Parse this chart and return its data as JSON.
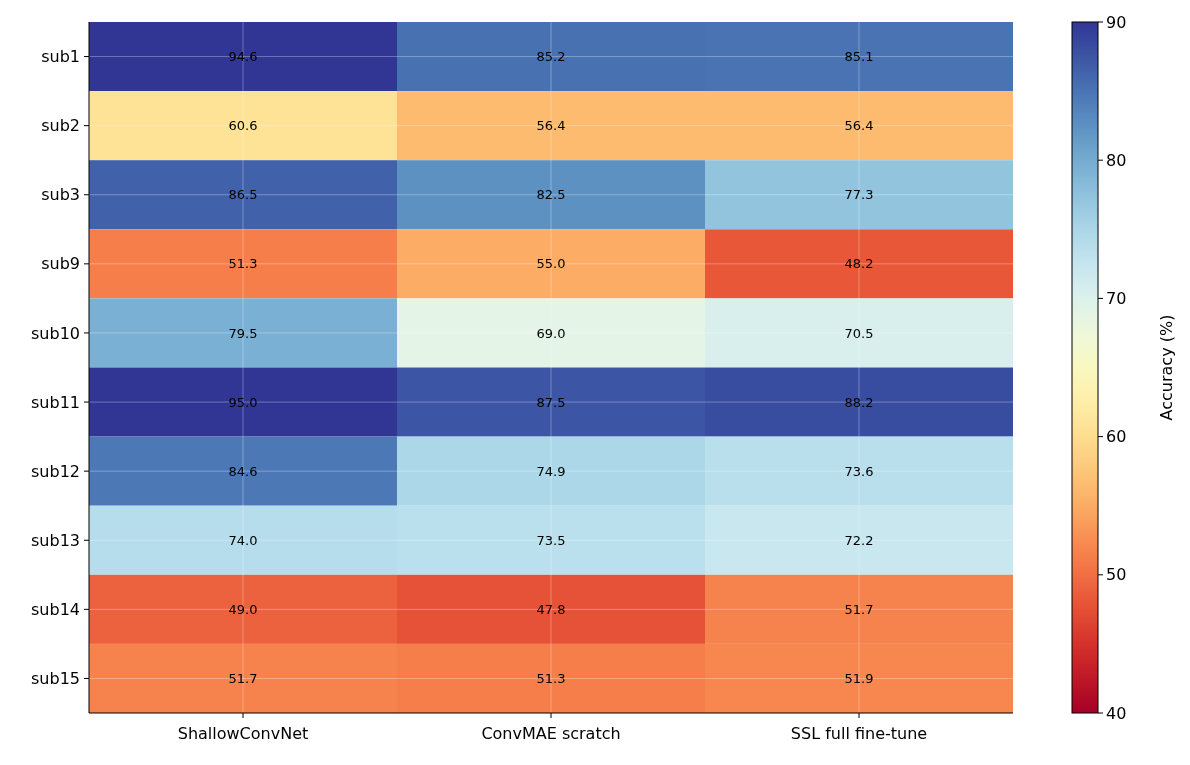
{
  "chart_data": {
    "type": "heatmap",
    "categories": [
      "ShallowConvNet",
      "ConvMAE scratch",
      "SSL full fine-tune"
    ],
    "y_categories": [
      "sub1",
      "sub2",
      "sub3",
      "sub9",
      "sub10",
      "sub11",
      "sub12",
      "sub13",
      "sub14",
      "sub15"
    ],
    "cells": [
      [
        94.6,
        85.2,
        85.1
      ],
      [
        60.6,
        56.4,
        56.4
      ],
      [
        86.5,
        82.5,
        77.3
      ],
      [
        51.3,
        55.0,
        48.2
      ],
      [
        79.5,
        69.0,
        70.5
      ],
      [
        95.0,
        87.5,
        88.2
      ],
      [
        84.6,
        74.9,
        73.6
      ],
      [
        74.0,
        73.5,
        72.2
      ],
      [
        49.0,
        47.8,
        51.7
      ],
      [
        51.7,
        51.3,
        51.9
      ]
    ],
    "cell_labels": [
      [
        "94.6",
        "85.2",
        "85.1"
      ],
      [
        "60.6",
        "56.4",
        "56.4"
      ],
      [
        "86.5",
        "82.5",
        "77.3"
      ],
      [
        "51.3",
        "55.0",
        "48.2"
      ],
      [
        "79.5",
        "69.0",
        "70.5"
      ],
      [
        "95.0",
        "87.5",
        "88.2"
      ],
      [
        "84.6",
        "74.9",
        "73.6"
      ],
      [
        "74.0",
        "73.5",
        "72.2"
      ],
      [
        "49.0",
        "47.8",
        "51.7"
      ],
      [
        "51.7",
        "51.3",
        "51.9"
      ]
    ],
    "clabel": "Accuracy (%)",
    "clim": [
      40,
      90
    ],
    "cticks": [
      40,
      50,
      60,
      70,
      80,
      90
    ],
    "grid": true
  }
}
